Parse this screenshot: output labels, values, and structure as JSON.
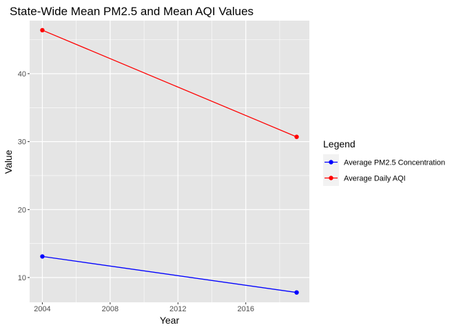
{
  "chart_data": {
    "type": "line",
    "title": "State-Wide Mean PM2.5 and Mean AQI Values",
    "xlabel": "Year",
    "ylabel": "Value",
    "x": [
      2004,
      2019
    ],
    "xlim": [
      2003.25,
      2019.75
    ],
    "ylim": [
      6.35,
      47.8
    ],
    "xticks": [
      2004,
      2008,
      2012,
      2016
    ],
    "yticks": [
      10,
      20,
      30,
      40
    ],
    "grid": true,
    "legend": {
      "title": "Legend",
      "placement": "right"
    },
    "series": [
      {
        "name": "Average PM2.5 Concentration",
        "color": "#0000ff",
        "values": [
          13.1,
          7.8
        ]
      },
      {
        "name": "Average Daily AQI",
        "color": "#ff0000",
        "values": [
          46.4,
          30.7
        ]
      }
    ]
  },
  "style": {
    "panel_background": "#e5e5e5",
    "grid_color": "#ffffff",
    "axis_text_color": "#4d4d4d",
    "text_color": "#000000"
  }
}
